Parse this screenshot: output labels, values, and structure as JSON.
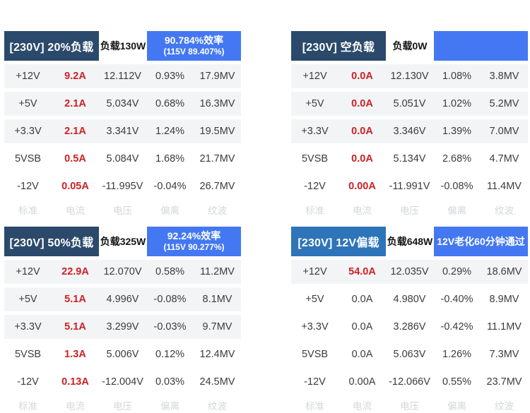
{
  "colors": {
    "navy_header": "#2b4a6b",
    "blue_header": "#2e74b9",
    "bright_blue": "#4478f2",
    "current_red": "#cc2127",
    "row_shade": "#f3f4f5",
    "footer_text": "#d4d6d9"
  },
  "footer_labels": [
    "标准",
    "电流",
    "电压",
    "偏离",
    "纹波"
  ],
  "tables": [
    {
      "title": "[230V] 20%负载",
      "title_variant": "navy",
      "load_label": "负载130W",
      "efficiency_line1": "90.784%效率",
      "efficiency_line2": "(115V 89.407%)",
      "rows": [
        {
          "rail": "+12V",
          "current": "9.2A",
          "red": true,
          "voltage": "12.112V",
          "deviation": "0.93%",
          "ripple": "17.9MV",
          "shaded": true
        },
        {
          "rail": "+5V",
          "current": "2.1A",
          "red": true,
          "voltage": "5.034V",
          "deviation": "0.68%",
          "ripple": "16.3MV",
          "shaded": true
        },
        {
          "rail": "+3.3V",
          "current": "2.1A",
          "red": true,
          "voltage": "3.341V",
          "deviation": "1.24%",
          "ripple": "19.5MV",
          "shaded": true
        },
        {
          "rail": "5VSB",
          "current": "0.5A",
          "red": true,
          "voltage": "5.084V",
          "deviation": "1.68%",
          "ripple": "21.7MV",
          "shaded": false
        },
        {
          "rail": "-12V",
          "current": "0.05A",
          "red": true,
          "voltage": "-11.995V",
          "deviation": "-0.04%",
          "ripple": "26.7MV",
          "shaded": false
        }
      ]
    },
    {
      "title": "[230V] 空负载",
      "title_variant": "navy",
      "load_label": "负载0W",
      "efficiency_line1": "",
      "efficiency_line2": "",
      "rows": [
        {
          "rail": "+12V",
          "current": "0.0A",
          "red": true,
          "voltage": "12.130V",
          "deviation": "1.08%",
          "ripple": "3.8MV",
          "shaded": true
        },
        {
          "rail": "+5V",
          "current": "0.0A",
          "red": true,
          "voltage": "5.051V",
          "deviation": "1.02%",
          "ripple": "5.2MV",
          "shaded": true
        },
        {
          "rail": "+3.3V",
          "current": "0.0A",
          "red": true,
          "voltage": "3.346V",
          "deviation": "1.39%",
          "ripple": "7.0MV",
          "shaded": true
        },
        {
          "rail": "5VSB",
          "current": "0.0A",
          "red": true,
          "voltage": "5.134V",
          "deviation": "2.68%",
          "ripple": "4.7MV",
          "shaded": false
        },
        {
          "rail": "-12V",
          "current": "0.00A",
          "red": true,
          "voltage": "-11.991V",
          "deviation": "-0.08%",
          "ripple": "11.4MV",
          "shaded": false
        }
      ]
    },
    {
      "title": "[230V] 50%负载",
      "title_variant": "navy",
      "load_label": "负载325W",
      "efficiency_line1": "92.24%效率",
      "efficiency_line2": "(115V 90.277%)",
      "rows": [
        {
          "rail": "+12V",
          "current": "22.9A",
          "red": true,
          "voltage": "12.070V",
          "deviation": "0.58%",
          "ripple": "11.2MV",
          "shaded": true
        },
        {
          "rail": "+5V",
          "current": "5.1A",
          "red": true,
          "voltage": "4.996V",
          "deviation": "-0.08%",
          "ripple": "8.1MV",
          "shaded": true
        },
        {
          "rail": "+3.3V",
          "current": "5.1A",
          "red": true,
          "voltage": "3.299V",
          "deviation": "-0.03%",
          "ripple": "9.7MV",
          "shaded": true
        },
        {
          "rail": "5VSB",
          "current": "1.3A",
          "red": true,
          "voltage": "5.006V",
          "deviation": "0.12%",
          "ripple": "12.4MV",
          "shaded": false
        },
        {
          "rail": "-12V",
          "current": "0.13A",
          "red": true,
          "voltage": "-12.004V",
          "deviation": "0.03%",
          "ripple": "24.5MV",
          "shaded": false
        }
      ]
    },
    {
      "title": "[230V] 12V偏载",
      "title_variant": "blue",
      "load_label": "负载648W",
      "efficiency_line1": "12V老化60分钟通过",
      "efficiency_line2": "",
      "rows": [
        {
          "rail": "+12V",
          "current": "54.0A",
          "red": true,
          "voltage": "12.035V",
          "deviation": "0.29%",
          "ripple": "18.6MV",
          "shaded": true
        },
        {
          "rail": "+5V",
          "current": "0.0A",
          "red": false,
          "voltage": "4.980V",
          "deviation": "-0.40%",
          "ripple": "8.9MV",
          "shaded": false
        },
        {
          "rail": "+3.3V",
          "current": "0.0A",
          "red": false,
          "voltage": "3.286V",
          "deviation": "-0.42%",
          "ripple": "11.1MV",
          "shaded": false
        },
        {
          "rail": "5VSB",
          "current": "0.0A",
          "red": false,
          "voltage": "5.063V",
          "deviation": "1.26%",
          "ripple": "7.3MV",
          "shaded": false
        },
        {
          "rail": "-12V",
          "current": "0.00A",
          "red": false,
          "voltage": "-12.066V",
          "deviation": "0.55%",
          "ripple": "23.7MV",
          "shaded": false
        }
      ]
    }
  ],
  "chart_data": [
    {
      "type": "table",
      "title": "[230V] 20%负载",
      "load": "负载130W",
      "efficiency": "90.784%效率 (115V 89.407%)",
      "columns": [
        "标准",
        "电流",
        "电压",
        "偏离",
        "纹波"
      ],
      "rows": [
        [
          "+12V",
          "9.2A",
          "12.112V",
          "0.93%",
          "17.9MV"
        ],
        [
          "+5V",
          "2.1A",
          "5.034V",
          "0.68%",
          "16.3MV"
        ],
        [
          "+3.3V",
          "2.1A",
          "3.341V",
          "1.24%",
          "19.5MV"
        ],
        [
          "5VSB",
          "0.5A",
          "5.084V",
          "1.68%",
          "21.7MV"
        ],
        [
          "-12V",
          "0.05A",
          "-11.995V",
          "-0.04%",
          "26.7MV"
        ]
      ]
    },
    {
      "type": "table",
      "title": "[230V] 空负载",
      "load": "负载0W",
      "efficiency": "",
      "columns": [
        "标准",
        "电流",
        "电压",
        "偏离",
        "纹波"
      ],
      "rows": [
        [
          "+12V",
          "0.0A",
          "12.130V",
          "1.08%",
          "3.8MV"
        ],
        [
          "+5V",
          "0.0A",
          "5.051V",
          "1.02%",
          "5.2MV"
        ],
        [
          "+3.3V",
          "0.0A",
          "3.346V",
          "1.39%",
          "7.0MV"
        ],
        [
          "5VSB",
          "0.0A",
          "5.134V",
          "2.68%",
          "4.7MV"
        ],
        [
          "-12V",
          "0.00A",
          "-11.991V",
          "-0.08%",
          "11.4MV"
        ]
      ]
    },
    {
      "type": "table",
      "title": "[230V] 50%负载",
      "load": "负载325W",
      "efficiency": "92.24%效率 (115V 90.277%)",
      "columns": [
        "标准",
        "电流",
        "电压",
        "偏离",
        "纹波"
      ],
      "rows": [
        [
          "+12V",
          "22.9A",
          "12.070V",
          "0.58%",
          "11.2MV"
        ],
        [
          "+5V",
          "5.1A",
          "4.996V",
          "-0.08%",
          "8.1MV"
        ],
        [
          "+3.3V",
          "5.1A",
          "3.299V",
          "-0.03%",
          "9.7MV"
        ],
        [
          "5VSB",
          "1.3A",
          "5.006V",
          "0.12%",
          "12.4MV"
        ],
        [
          "-12V",
          "0.13A",
          "-12.004V",
          "0.03%",
          "24.5MV"
        ]
      ]
    },
    {
      "type": "table",
      "title": "[230V] 12V偏载",
      "load": "负载648W",
      "efficiency": "12V老化60分钟通过",
      "columns": [
        "标准",
        "电流",
        "电压",
        "偏离",
        "纹波"
      ],
      "rows": [
        [
          "+12V",
          "54.0A",
          "12.035V",
          "0.29%",
          "18.6MV"
        ],
        [
          "+5V",
          "0.0A",
          "4.980V",
          "-0.40%",
          "8.9MV"
        ],
        [
          "+3.3V",
          "0.0A",
          "3.286V",
          "-0.42%",
          "11.1MV"
        ],
        [
          "5VSB",
          "0.0A",
          "5.063V",
          "1.26%",
          "7.3MV"
        ],
        [
          "-12V",
          "0.00A",
          "-12.066V",
          "0.55%",
          "23.7MV"
        ]
      ]
    }
  ]
}
